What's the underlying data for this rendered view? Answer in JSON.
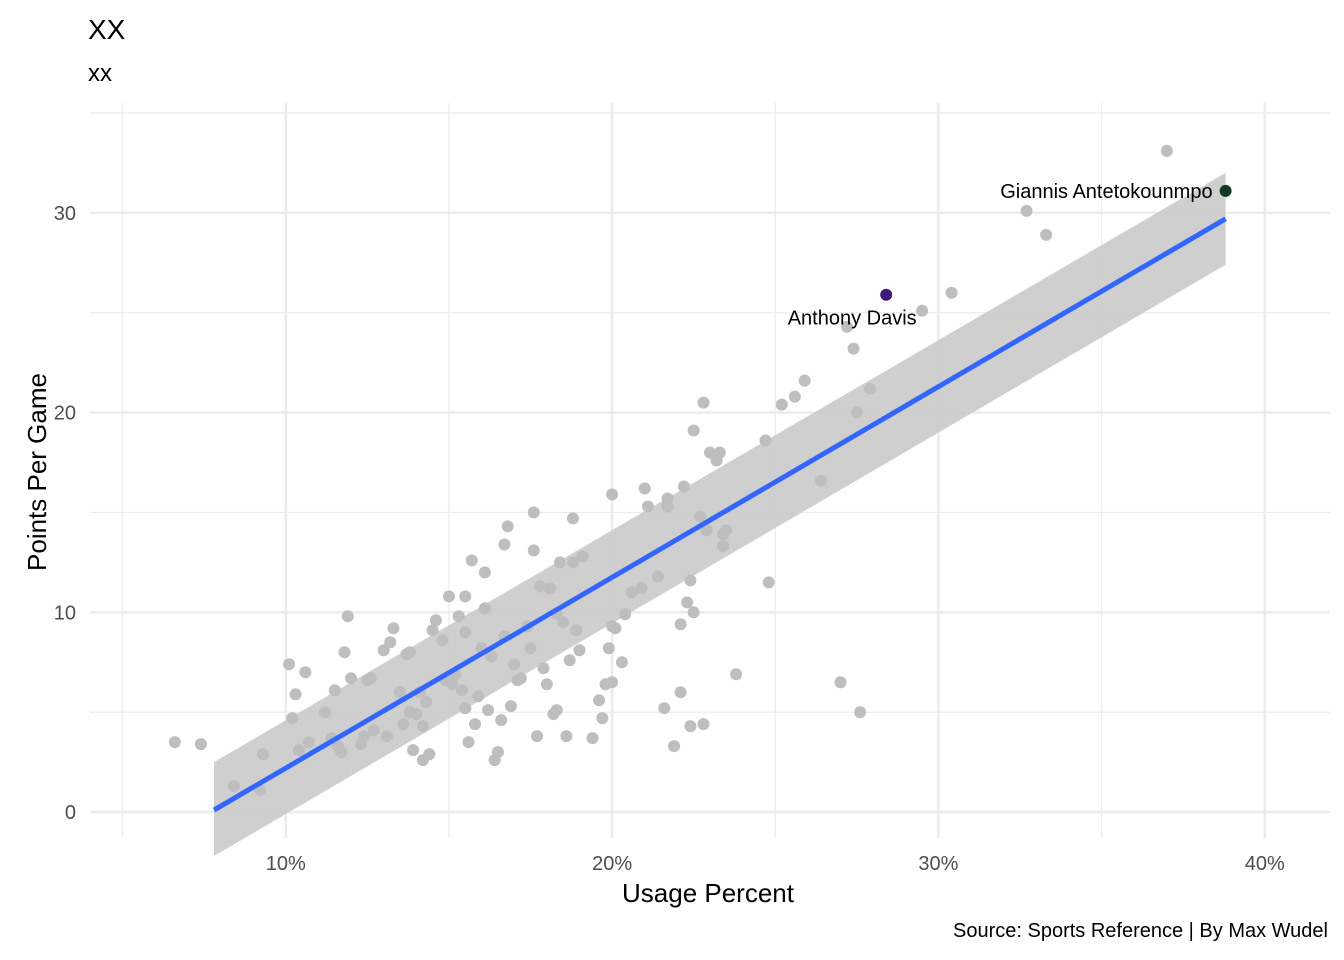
{
  "chart_data": {
    "type": "scatter",
    "title": "XX",
    "subtitle": "xx",
    "caption": "Source: Sports Reference | By Max Wudel",
    "xlabel": "Usage Percent",
    "ylabel": "Points Per Game",
    "xlim": [
      0.04,
      0.42
    ],
    "ylim": [
      -1.3,
      35.5
    ],
    "x_ticks": [
      0.1,
      0.2,
      0.3,
      0.4
    ],
    "x_tick_labels": [
      "10%",
      "20%",
      "30%",
      "40%"
    ],
    "x_minor": [
      0.05,
      0.15,
      0.25,
      0.35
    ],
    "y_ticks": [
      0,
      10,
      20,
      30
    ],
    "y_tick_labels": [
      "0",
      "10",
      "20",
      "30"
    ],
    "y_minor": [
      5,
      15,
      25,
      35
    ],
    "grid": true,
    "colors": {
      "points": "#bebebe",
      "trend_line": "#3366ff",
      "confidence_band": "#cccccc",
      "highlight_davis": "#3f1b78",
      "highlight_giannis": "#123a1f",
      "grid": "#ebebeb"
    },
    "trend": {
      "x": [
        0.078,
        0.388
      ],
      "y": [
        0.1,
        29.7
      ],
      "band_upper": [
        2.5,
        32.0
      ],
      "band_lower": [
        -2.2,
        27.4
      ]
    },
    "highlights": [
      {
        "label": "Anthony Davis",
        "x": 0.284,
        "y": 25.9
      },
      {
        "label": "Giannis Antetokounmpo",
        "x": 0.388,
        "y": 31.1
      }
    ],
    "points": [
      [
        0.066,
        3.5
      ],
      [
        0.074,
        3.4
      ],
      [
        0.084,
        1.3
      ],
      [
        0.092,
        1.1
      ],
      [
        0.093,
        2.9
      ],
      [
        0.101,
        7.4
      ],
      [
        0.102,
        4.7
      ],
      [
        0.103,
        5.9
      ],
      [
        0.104,
        3.1
      ],
      [
        0.106,
        7.0
      ],
      [
        0.107,
        3.5
      ],
      [
        0.112,
        5.0
      ],
      [
        0.114,
        3.7
      ],
      [
        0.115,
        6.1
      ],
      [
        0.116,
        3.3
      ],
      [
        0.117,
        3.0
      ],
      [
        0.118,
        8.0
      ],
      [
        0.119,
        9.8
      ],
      [
        0.12,
        6.7
      ],
      [
        0.123,
        3.4
      ],
      [
        0.124,
        3.8
      ],
      [
        0.125,
        6.6
      ],
      [
        0.126,
        6.7
      ],
      [
        0.127,
        4.1
      ],
      [
        0.13,
        8.1
      ],
      [
        0.131,
        3.8
      ],
      [
        0.132,
        8.5
      ],
      [
        0.133,
        9.2
      ],
      [
        0.135,
        6.0
      ],
      [
        0.136,
        4.4
      ],
      [
        0.137,
        7.9
      ],
      [
        0.138,
        8.0
      ],
      [
        0.138,
        5.0
      ],
      [
        0.139,
        3.1
      ],
      [
        0.14,
        4.9
      ],
      [
        0.141,
        6.0
      ],
      [
        0.142,
        4.3
      ],
      [
        0.142,
        2.6
      ],
      [
        0.143,
        5.5
      ],
      [
        0.144,
        2.9
      ],
      [
        0.145,
        9.1
      ],
      [
        0.146,
        9.6
      ],
      [
        0.148,
        8.6
      ],
      [
        0.149,
        6.6
      ],
      [
        0.15,
        10.8
      ],
      [
        0.151,
        6.4
      ],
      [
        0.152,
        6.9
      ],
      [
        0.153,
        9.8
      ],
      [
        0.154,
        6.1
      ],
      [
        0.155,
        9.0
      ],
      [
        0.155,
        10.8
      ],
      [
        0.155,
        5.2
      ],
      [
        0.156,
        3.5
      ],
      [
        0.157,
        12.6
      ],
      [
        0.158,
        4.4
      ],
      [
        0.159,
        5.8
      ],
      [
        0.16,
        8.2
      ],
      [
        0.161,
        10.2
      ],
      [
        0.161,
        12.0
      ],
      [
        0.162,
        5.1
      ],
      [
        0.163,
        7.8
      ],
      [
        0.164,
        2.6
      ],
      [
        0.165,
        3.0
      ],
      [
        0.166,
        4.6
      ],
      [
        0.167,
        8.8
      ],
      [
        0.167,
        13.4
      ],
      [
        0.168,
        14.3
      ],
      [
        0.169,
        5.3
      ],
      [
        0.17,
        7.4
      ],
      [
        0.171,
        6.6
      ],
      [
        0.172,
        6.7
      ],
      [
        0.174,
        9.3
      ],
      [
        0.175,
        8.2
      ],
      [
        0.176,
        15.0
      ],
      [
        0.176,
        13.1
      ],
      [
        0.177,
        3.8
      ],
      [
        0.178,
        11.3
      ],
      [
        0.179,
        7.2
      ],
      [
        0.18,
        6.4
      ],
      [
        0.181,
        11.2
      ],
      [
        0.182,
        4.9
      ],
      [
        0.183,
        5.1
      ],
      [
        0.183,
        9.9
      ],
      [
        0.184,
        12.5
      ],
      [
        0.185,
        9.5
      ],
      [
        0.186,
        3.8
      ],
      [
        0.187,
        7.6
      ],
      [
        0.188,
        14.7
      ],
      [
        0.188,
        12.5
      ],
      [
        0.189,
        9.1
      ],
      [
        0.19,
        8.1
      ],
      [
        0.191,
        12.8
      ],
      [
        0.194,
        3.7
      ],
      [
        0.196,
        5.6
      ],
      [
        0.197,
        4.7
      ],
      [
        0.198,
        6.4
      ],
      [
        0.199,
        8.2
      ],
      [
        0.2,
        6.5
      ],
      [
        0.2,
        9.3
      ],
      [
        0.2,
        15.9
      ],
      [
        0.201,
        9.2
      ],
      [
        0.203,
        7.5
      ],
      [
        0.204,
        9.9
      ],
      [
        0.206,
        11.0
      ],
      [
        0.209,
        11.2
      ],
      [
        0.21,
        16.2
      ],
      [
        0.211,
        15.3
      ],
      [
        0.214,
        11.8
      ],
      [
        0.216,
        5.2
      ],
      [
        0.217,
        15.7
      ],
      [
        0.217,
        15.3
      ],
      [
        0.219,
        3.3
      ],
      [
        0.221,
        9.4
      ],
      [
        0.221,
        6.0
      ],
      [
        0.222,
        16.3
      ],
      [
        0.223,
        10.5
      ],
      [
        0.224,
        11.6
      ],
      [
        0.224,
        4.3
      ],
      [
        0.225,
        10.0
      ],
      [
        0.225,
        19.1
      ],
      [
        0.227,
        14.8
      ],
      [
        0.229,
        14.1
      ],
      [
        0.232,
        17.6
      ],
      [
        0.233,
        18.0
      ],
      [
        0.234,
        13.3
      ],
      [
        0.234,
        13.9
      ],
      [
        0.228,
        4.4
      ],
      [
        0.228,
        20.5
      ],
      [
        0.23,
        18.0
      ],
      [
        0.235,
        14.1
      ],
      [
        0.238,
        6.9
      ],
      [
        0.247,
        18.6
      ],
      [
        0.248,
        11.5
      ],
      [
        0.252,
        20.4
      ],
      [
        0.256,
        20.8
      ],
      [
        0.259,
        21.6
      ],
      [
        0.264,
        16.6
      ],
      [
        0.27,
        6.5
      ],
      [
        0.272,
        24.3
      ],
      [
        0.274,
        23.2
      ],
      [
        0.275,
        20.0
      ],
      [
        0.276,
        5.0
      ],
      [
        0.279,
        21.2
      ],
      [
        0.295,
        25.1
      ],
      [
        0.304,
        26.0
      ],
      [
        0.327,
        30.1
      ],
      [
        0.333,
        28.9
      ],
      [
        0.37,
        33.1
      ]
    ]
  }
}
